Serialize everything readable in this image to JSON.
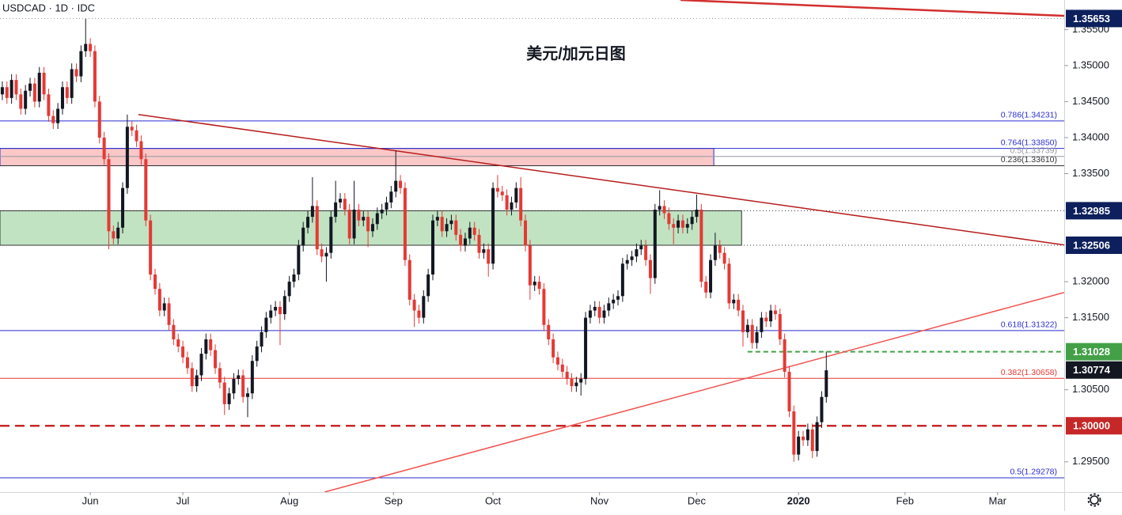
{
  "chart_data": {
    "type": "candlestick",
    "header": "USDCAD · 1D · IDC",
    "title": "美元/加元日图",
    "up_color": "#131722",
    "down_color": "#e53935",
    "xlim": [
      -0.5,
      229.4
    ],
    "ylim": [
      1.2908,
      1.3591
    ],
    "xticks": [
      {
        "value": 19,
        "label": "Jun"
      },
      {
        "value": 39,
        "label": "Jul"
      },
      {
        "value": 62,
        "label": "Aug"
      },
      {
        "value": 84.5,
        "label": "Sep"
      },
      {
        "value": 106,
        "label": "Oct"
      },
      {
        "value": 129,
        "label": "Nov"
      },
      {
        "value": 150,
        "label": "Dec"
      },
      {
        "value": 172,
        "label": "2020"
      },
      {
        "value": 195,
        "label": "Feb"
      },
      {
        "value": 215,
        "label": "Mar"
      }
    ],
    "yticks": [
      {
        "value": 1.355,
        "label": "1.35500"
      },
      {
        "value": 1.35,
        "label": "1.35000"
      },
      {
        "value": 1.345,
        "label": "1.34500"
      },
      {
        "value": 1.34,
        "label": "1.34000"
      },
      {
        "value": 1.335,
        "label": "1.33500"
      },
      {
        "value": 1.32,
        "label": "1.32000"
      },
      {
        "value": 1.315,
        "label": "1.31500"
      },
      {
        "value": 1.305,
        "label": "1.30500"
      },
      {
        "value": 1.295,
        "label": "1.29500"
      }
    ],
    "zones": [
      {
        "from": 1.3361,
        "to": 1.3385,
        "x_end": 153.7,
        "fill": "rgba(239,83,80,0.32)",
        "stroke": "#2a2ed0"
      },
      {
        "from": 1.32506,
        "to": 1.32985,
        "x_end": 159.7,
        "fill": "rgba(76,175,80,0.35)",
        "stroke": "#333333"
      }
    ],
    "trendlines": [
      {
        "x": [
          146.5,
          229.4
        ],
        "y": [
          1.3591,
          1.3569
        ],
        "color": "#d32f2f",
        "width": 2.5
      },
      {
        "x": [
          29.4,
          229.4
        ],
        "y": [
          1.3432,
          1.3251
        ],
        "color": "#b71c1c",
        "width": 1.5
      },
      {
        "x": [
          69.6,
          229.4
        ],
        "y": [
          1.2908,
          1.3185
        ],
        "color": "#ef5350",
        "width": 1.5
      }
    ],
    "levels": [
      {
        "value": 1.35653,
        "color": "#9598a1",
        "style": "dotted",
        "tag": "#0d1f5c"
      },
      {
        "value": 1.34231,
        "color": "#2a2ed0",
        "style": "solid",
        "label": "0.786(1.34231)"
      },
      {
        "value": 1.3385,
        "color": "#2a2ed0",
        "style": "solid",
        "label": "0.764(1.33850)"
      },
      {
        "value": 1.33739,
        "color": "#9598a1",
        "style": "solid",
        "label": "0.5(1.33739)"
      },
      {
        "value": 1.3361,
        "color": "#333333",
        "style": "solid",
        "label": "0.236(1.33610)"
      },
      {
        "value": 1.32985,
        "color": "#333333",
        "style": "dotted",
        "tag": "#0d1f5c"
      },
      {
        "value": 1.32506,
        "color": "#333333",
        "style": "dotted",
        "tag": "#0d1f5c"
      },
      {
        "value": 1.31322,
        "color": "#2a2ed0",
        "style": "solid",
        "label": "0.618(1.31322)"
      },
      {
        "value": 1.31028,
        "color": "#43a047",
        "style": "dashed",
        "from": 161,
        "tag": "#43a047"
      },
      {
        "value": 1.30774,
        "color": "#131722",
        "style": "none",
        "tag": "#131722"
      },
      {
        "value": 1.30658,
        "color": "#e53935",
        "style": "solid",
        "label": "0.382(1.30658)"
      },
      {
        "value": 1.3,
        "tag_label": "1.30000",
        "color": "#c62828",
        "style": "bold-dashed",
        "tag": "#c62828"
      },
      {
        "value": 1.29278,
        "color": "#2a2ed0",
        "style": "solid",
        "label": "0.5(1.29278)"
      }
    ],
    "candles": [
      [
        1.346,
        1.3478,
        1.3452,
        1.347
      ],
      [
        1.347,
        1.3478,
        1.3447,
        1.3455
      ],
      [
        1.3455,
        1.3488,
        1.3447,
        1.348
      ],
      [
        1.348,
        1.3488,
        1.3452,
        1.346
      ],
      [
        1.346,
        1.3468,
        1.3432,
        1.344
      ],
      [
        1.344,
        1.3473,
        1.3432,
        1.3465
      ],
      [
        1.3465,
        1.3483,
        1.3457,
        1.3475
      ],
      [
        1.3475,
        1.3483,
        1.3442,
        1.345
      ],
      [
        1.345,
        1.3498,
        1.3442,
        1.349
      ],
      [
        1.349,
        1.3498,
        1.3452,
        1.346
      ],
      [
        1.346,
        1.3468,
        1.3422,
        1.343
      ],
      [
        1.343,
        1.3438,
        1.3412,
        1.342
      ],
      [
        1.342,
        1.3448,
        1.3412,
        1.344
      ],
      [
        1.344,
        1.3478,
        1.3432,
        1.347
      ],
      [
        1.347,
        1.3478,
        1.3447,
        1.3455
      ],
      [
        1.3455,
        1.3503,
        1.3447,
        1.3495
      ],
      [
        1.3495,
        1.3503,
        1.3477,
        1.3485
      ],
      [
        1.3485,
        1.3528,
        1.3477,
        1.352
      ],
      [
        1.352,
        1.3565,
        1.3512,
        1.353
      ],
      [
        1.353,
        1.3538,
        1.3512,
        1.352
      ],
      [
        1.352,
        1.3528,
        1.3442,
        1.345
      ],
      [
        1.345,
        1.3458,
        1.3392,
        1.34
      ],
      [
        1.34,
        1.3408,
        1.3362,
        1.337
      ],
      [
        1.337,
        1.3378,
        1.3245,
        1.327
      ],
      [
        1.327,
        1.3278,
        1.3252,
        1.326
      ],
      [
        1.326,
        1.3283,
        1.3252,
        1.3275
      ],
      [
        1.3275,
        1.3338,
        1.3267,
        1.333
      ],
      [
        1.333,
        1.3432,
        1.3322,
        1.3415
      ],
      [
        1.3415,
        1.3423,
        1.3402,
        1.341
      ],
      [
        1.341,
        1.3418,
        1.3387,
        1.3395
      ],
      [
        1.3395,
        1.3403,
        1.3362,
        1.337
      ],
      [
        1.337,
        1.3378,
        1.3277,
        1.3285
      ],
      [
        1.3285,
        1.3293,
        1.3202,
        1.321
      ],
      [
        1.321,
        1.3218,
        1.3182,
        1.319
      ],
      [
        1.319,
        1.3198,
        1.3152,
        1.316
      ],
      [
        1.316,
        1.3178,
        1.3152,
        1.317
      ],
      [
        1.317,
        1.3178,
        1.3132,
        1.314
      ],
      [
        1.314,
        1.3148,
        1.3112,
        1.312
      ],
      [
        1.312,
        1.3128,
        1.3102,
        1.311
      ],
      [
        1.311,
        1.3118,
        1.3087,
        1.3095
      ],
      [
        1.3095,
        1.3103,
        1.3072,
        1.308
      ],
      [
        1.308,
        1.3088,
        1.3047,
        1.3055
      ],
      [
        1.3055,
        1.3078,
        1.3047,
        1.307
      ],
      [
        1.307,
        1.3108,
        1.3062,
        1.31
      ],
      [
        1.31,
        1.3128,
        1.3092,
        1.312
      ],
      [
        1.312,
        1.3128,
        1.3097,
        1.3105
      ],
      [
        1.3105,
        1.3113,
        1.3072,
        1.308
      ],
      [
        1.308,
        1.3088,
        1.3052,
        1.306
      ],
      [
        1.306,
        1.3068,
        1.3015,
        1.303
      ],
      [
        1.303,
        1.3053,
        1.3022,
        1.3045
      ],
      [
        1.3045,
        1.3073,
        1.3037,
        1.3065
      ],
      [
        1.3065,
        1.3078,
        1.3057,
        1.307
      ],
      [
        1.307,
        1.3078,
        1.3032,
        1.304
      ],
      [
        1.304,
        1.3053,
        1.3012,
        1.3045
      ],
      [
        1.3045,
        1.3098,
        1.3037,
        1.309
      ],
      [
        1.309,
        1.3118,
        1.3082,
        1.311
      ],
      [
        1.311,
        1.3138,
        1.3102,
        1.313
      ],
      [
        1.313,
        1.3158,
        1.3122,
        1.315
      ],
      [
        1.315,
        1.3168,
        1.3142,
        1.316
      ],
      [
        1.316,
        1.3173,
        1.3152,
        1.3165
      ],
      [
        1.3165,
        1.3173,
        1.3112,
        1.3155
      ],
      [
        1.3155,
        1.3188,
        1.3147,
        1.318
      ],
      [
        1.318,
        1.3208,
        1.3172,
        1.32
      ],
      [
        1.32,
        1.3218,
        1.3192,
        1.321
      ],
      [
        1.321,
        1.3258,
        1.3202,
        1.325
      ],
      [
        1.325,
        1.3283,
        1.3242,
        1.3275
      ],
      [
        1.3275,
        1.3298,
        1.3267,
        1.329
      ],
      [
        1.329,
        1.3345,
        1.3282,
        1.3305
      ],
      [
        1.3305,
        1.3313,
        1.3237,
        1.3245
      ],
      [
        1.3245,
        1.3253,
        1.3227,
        1.3235
      ],
      [
        1.3235,
        1.3248,
        1.32,
        1.324
      ],
      [
        1.324,
        1.3298,
        1.3232,
        1.329
      ],
      [
        1.329,
        1.334,
        1.3282,
        1.331
      ],
      [
        1.331,
        1.3323,
        1.3302,
        1.3315
      ],
      [
        1.3315,
        1.3323,
        1.3292,
        1.33
      ],
      [
        1.33,
        1.3308,
        1.3252,
        1.326
      ],
      [
        1.326,
        1.334,
        1.3252,
        1.33
      ],
      [
        1.33,
        1.3308,
        1.3277,
        1.3285
      ],
      [
        1.3285,
        1.3298,
        1.3277,
        1.329
      ],
      [
        1.329,
        1.3298,
        1.3248,
        1.327
      ],
      [
        1.327,
        1.3288,
        1.3262,
        1.328
      ],
      [
        1.328,
        1.3303,
        1.3272,
        1.3295
      ],
      [
        1.3295,
        1.3308,
        1.3287,
        1.33
      ],
      [
        1.33,
        1.3318,
        1.3292,
        1.331
      ],
      [
        1.331,
        1.3333,
        1.3302,
        1.3325
      ],
      [
        1.3325,
        1.3382,
        1.3317,
        1.334
      ],
      [
        1.334,
        1.3348,
        1.3322,
        1.333
      ],
      [
        1.333,
        1.3338,
        1.3222,
        1.323
      ],
      [
        1.323,
        1.3238,
        1.3167,
        1.3175
      ],
      [
        1.3175,
        1.3183,
        1.3137,
        1.316
      ],
      [
        1.316,
        1.3168,
        1.3142,
        1.315
      ],
      [
        1.315,
        1.3188,
        1.3142,
        1.318
      ],
      [
        1.318,
        1.3218,
        1.3172,
        1.321
      ],
      [
        1.321,
        1.3293,
        1.3202,
        1.3285
      ],
      [
        1.3285,
        1.3298,
        1.3277,
        1.329
      ],
      [
        1.329,
        1.3298,
        1.3262,
        1.327
      ],
      [
        1.327,
        1.3288,
        1.3262,
        1.328
      ],
      [
        1.328,
        1.3293,
        1.3272,
        1.3285
      ],
      [
        1.3285,
        1.3293,
        1.3257,
        1.3265
      ],
      [
        1.3265,
        1.3273,
        1.3242,
        1.325
      ],
      [
        1.325,
        1.3268,
        1.3242,
        1.326
      ],
      [
        1.326,
        1.3283,
        1.3252,
        1.3275
      ],
      [
        1.3275,
        1.3283,
        1.3257,
        1.3265
      ],
      [
        1.3265,
        1.3273,
        1.3232,
        1.324
      ],
      [
        1.324,
        1.3253,
        1.3232,
        1.3245
      ],
      [
        1.3245,
        1.3253,
        1.3207,
        1.3225
      ],
      [
        1.3225,
        1.3338,
        1.3217,
        1.333
      ],
      [
        1.333,
        1.3348,
        1.3317,
        1.3325
      ],
      [
        1.3325,
        1.3333,
        1.3312,
        1.332
      ],
      [
        1.332,
        1.3328,
        1.3292,
        1.33
      ],
      [
        1.33,
        1.3318,
        1.3292,
        1.331
      ],
      [
        1.331,
        1.3338,
        1.3302,
        1.333
      ],
      [
        1.333,
        1.3345,
        1.3277,
        1.3285
      ],
      [
        1.3285,
        1.3293,
        1.3242,
        1.325
      ],
      [
        1.325,
        1.3258,
        1.3175,
        1.3195
      ],
      [
        1.3195,
        1.3208,
        1.3187,
        1.32
      ],
      [
        1.32,
        1.3208,
        1.3182,
        1.319
      ],
      [
        1.319,
        1.3198,
        1.3132,
        1.314
      ],
      [
        1.314,
        1.3148,
        1.3112,
        1.312
      ],
      [
        1.312,
        1.3128,
        1.3087,
        1.3095
      ],
      [
        1.3095,
        1.3103,
        1.3077,
        1.3085
      ],
      [
        1.3085,
        1.3093,
        1.3067,
        1.3075
      ],
      [
        1.3075,
        1.3083,
        1.3057,
        1.3065
      ],
      [
        1.3065,
        1.3073,
        1.3047,
        1.3055
      ],
      [
        1.3055,
        1.3068,
        1.3047,
        1.306
      ],
      [
        1.306,
        1.3073,
        1.3042,
        1.3065
      ],
      [
        1.3065,
        1.3158,
        1.3057,
        1.315
      ],
      [
        1.315,
        1.3168,
        1.3142,
        1.316
      ],
      [
        1.316,
        1.3173,
        1.3152,
        1.3165
      ],
      [
        1.3165,
        1.3173,
        1.3142,
        1.315
      ],
      [
        1.315,
        1.3168,
        1.3142,
        1.316
      ],
      [
        1.316,
        1.3178,
        1.3152,
        1.317
      ],
      [
        1.317,
        1.3183,
        1.3162,
        1.3175
      ],
      [
        1.3175,
        1.3188,
        1.3167,
        1.318
      ],
      [
        1.318,
        1.3233,
        1.3172,
        1.3225
      ],
      [
        1.3225,
        1.3238,
        1.3217,
        1.323
      ],
      [
        1.323,
        1.3243,
        1.3222,
        1.3235
      ],
      [
        1.3235,
        1.3253,
        1.3227,
        1.3245
      ],
      [
        1.3245,
        1.3258,
        1.3237,
        1.325
      ],
      [
        1.325,
        1.3258,
        1.3222,
        1.323
      ],
      [
        1.323,
        1.3238,
        1.3183,
        1.3205
      ],
      [
        1.3205,
        1.3308,
        1.3197,
        1.33
      ],
      [
        1.33,
        1.3327,
        1.3292,
        1.3305
      ],
      [
        1.3305,
        1.3313,
        1.3287,
        1.3295
      ],
      [
        1.3295,
        1.3303,
        1.3272,
        1.328
      ],
      [
        1.328,
        1.3288,
        1.3252,
        1.3275
      ],
      [
        1.3275,
        1.3293,
        1.3267,
        1.3285
      ],
      [
        1.3285,
        1.3293,
        1.3267,
        1.3275
      ],
      [
        1.3275,
        1.3288,
        1.3267,
        1.328
      ],
      [
        1.328,
        1.3298,
        1.3272,
        1.329
      ],
      [
        1.329,
        1.3321,
        1.3282,
        1.33
      ],
      [
        1.33,
        1.3308,
        1.3192,
        1.32
      ],
      [
        1.32,
        1.3208,
        1.3177,
        1.3185
      ],
      [
        1.3185,
        1.3238,
        1.3177,
        1.323
      ],
      [
        1.323,
        1.3268,
        1.3222,
        1.325
      ],
      [
        1.325,
        1.3258,
        1.3232,
        1.324
      ],
      [
        1.324,
        1.3248,
        1.3217,
        1.3225
      ],
      [
        1.3225,
        1.3233,
        1.3162,
        1.317
      ],
      [
        1.317,
        1.3183,
        1.3162,
        1.3175
      ],
      [
        1.3175,
        1.3183,
        1.3152,
        1.316
      ],
      [
        1.316,
        1.3168,
        1.311,
        1.313
      ],
      [
        1.313,
        1.3148,
        1.3122,
        1.314
      ],
      [
        1.314,
        1.3148,
        1.3107,
        1.3115
      ],
      [
        1.3115,
        1.3138,
        1.3107,
        1.313
      ],
      [
        1.313,
        1.3158,
        1.3122,
        1.315
      ],
      [
        1.315,
        1.3158,
        1.3137,
        1.3145
      ],
      [
        1.3145,
        1.3168,
        1.3137,
        1.316
      ],
      [
        1.316,
        1.3168,
        1.3147,
        1.3155
      ],
      [
        1.3155,
        1.3163,
        1.3112,
        1.312
      ],
      [
        1.312,
        1.3128,
        1.3067,
        1.3075
      ],
      [
        1.3075,
        1.3083,
        1.3012,
        1.302
      ],
      [
        1.302,
        1.3028,
        1.295,
        1.296
      ],
      [
        1.296,
        1.2993,
        1.2952,
        1.2985
      ],
      [
        1.2985,
        1.2993,
        1.2972,
        1.298
      ],
      [
        1.298,
        1.3003,
        1.2972,
        1.2995
      ],
      [
        1.2995,
        1.3003,
        1.2955,
        1.2965
      ],
      [
        1.2965,
        1.3013,
        1.2957,
        1.3005
      ],
      [
        1.3005,
        1.3048,
        1.2997,
        1.304
      ],
      [
        1.304,
        1.3103,
        1.3032,
        1.3077
      ]
    ]
  }
}
